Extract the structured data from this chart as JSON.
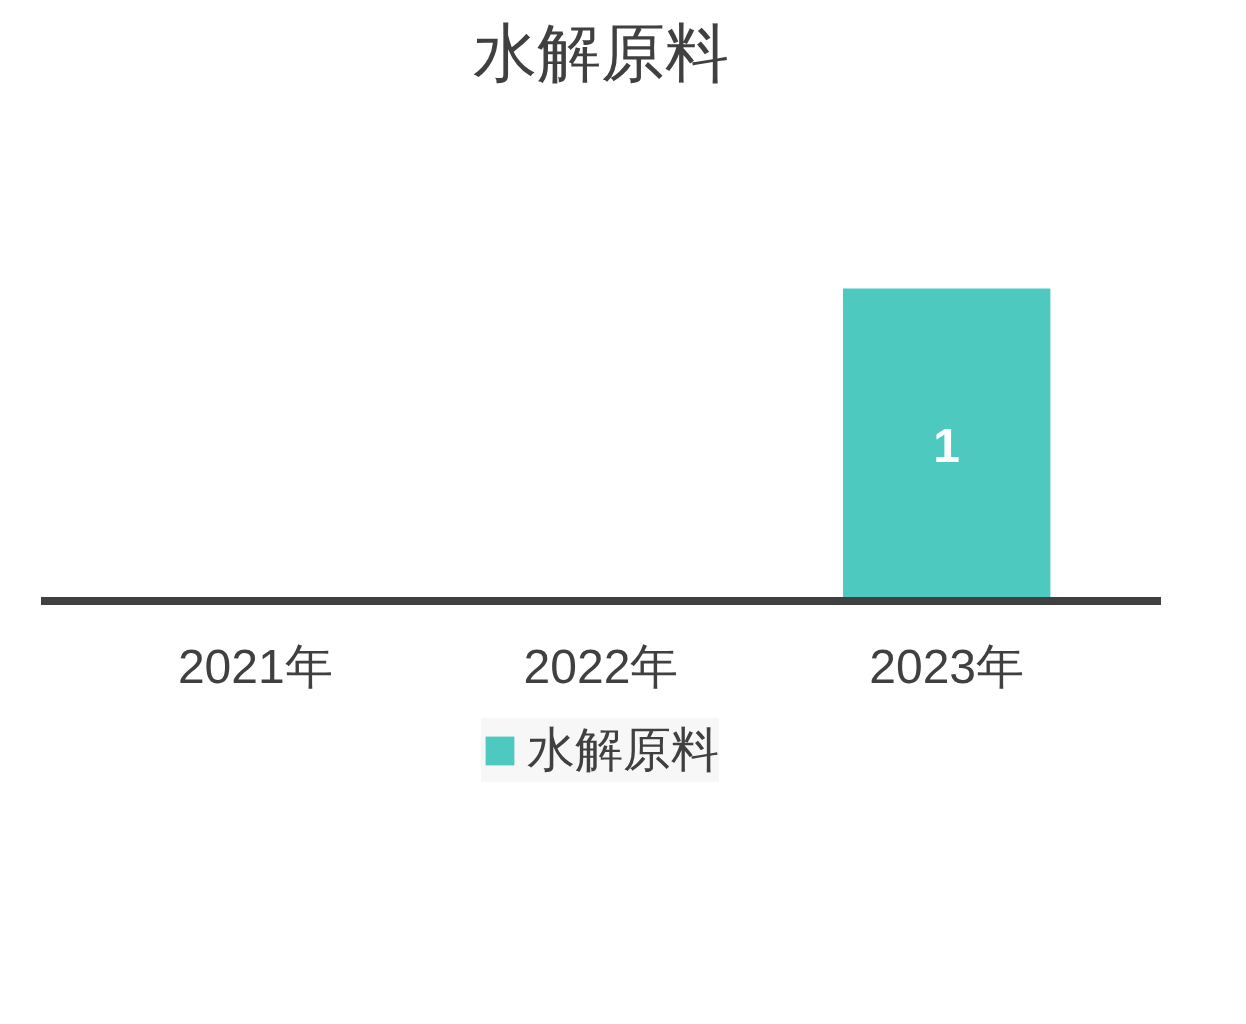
{
  "chart_data": {
    "type": "bar",
    "title": "水解原料",
    "categories": [
      "2021年",
      "2022年",
      "2023年"
    ],
    "series": [
      {
        "name": "水解原料",
        "color": "#4ec9c0",
        "values": [
          null,
          null,
          1
        ],
        "value_labels": [
          null,
          null,
          "1"
        ]
      }
    ],
    "legend": "bottom"
  }
}
